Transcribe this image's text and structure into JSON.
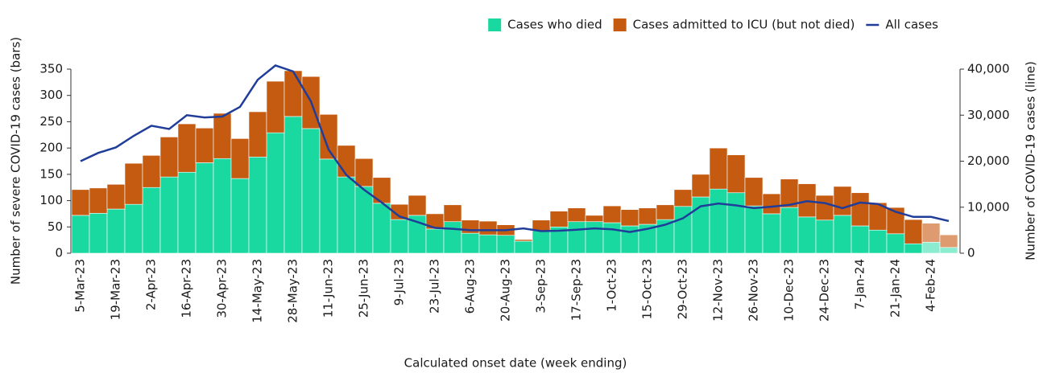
{
  "chart_data": {
    "type": "bar",
    "stacked": true,
    "x_label": "Calculated onset date (week ending)",
    "y_label": "Number of severe COVID-19 cases (bars)",
    "y2_label": "Number of COVID-19 cases (line)",
    "legend": "top-right",
    "categories": [
      "5-Mar-23",
      null,
      "19-Mar-23",
      null,
      "2-Apr-23",
      null,
      "16-Apr-23",
      null,
      "30-Apr-23",
      null,
      "14-May-23",
      null,
      "28-May-23",
      null,
      "11-Jun-23",
      null,
      "25-Jun-23",
      null,
      "9-Jul-23",
      null,
      "23-Jul-23",
      null,
      "6-Aug-23",
      null,
      "20-Aug-23",
      null,
      "3-Sep-23",
      null,
      "17-Sep-23",
      null,
      "1-Oct-23",
      null,
      "15-Oct-23",
      null,
      "29-Oct-23",
      null,
      "12-Nov-23",
      null,
      "26-Nov-23",
      null,
      "10-Dec-23",
      null,
      "24-Dec-23",
      null,
      "7-Jan-24",
      null,
      "21-Jan-24",
      null,
      "4-Feb-24",
      null
    ],
    "ylim": [
      0,
      350
    ],
    "yticks": [
      0,
      50,
      100,
      150,
      200,
      250,
      300,
      350
    ],
    "y2lim": [
      0,
      40000
    ],
    "y2ticks": [
      0,
      {
        "value": 10000,
        "label": "10,000"
      },
      {
        "value": 20000,
        "label": "20,000"
      },
      {
        "value": 30000,
        "label": "30,000"
      },
      {
        "value": 40000,
        "label": "40,000"
      }
    ],
    "series": [
      {
        "name": "Cases who died",
        "color": "#1ad9a0",
        "colors": [
          "#1ad9a0",
          "#1ad9a0",
          "#1ad9a0",
          "#1ad9a0",
          "#1ad9a0",
          "#1ad9a0",
          "#1ad9a0",
          "#1ad9a0",
          "#1ad9a0",
          "#1ad9a0",
          "#1ad9a0",
          "#1ad9a0",
          "#1ad9a0",
          "#1ad9a0",
          "#1ad9a0",
          "#1ad9a0",
          "#1ad9a0",
          "#1ad9a0",
          "#1ad9a0",
          "#1ad9a0",
          "#1ad9a0",
          "#1ad9a0",
          "#1ad9a0",
          "#1ad9a0",
          "#1ad9a0",
          "#1ad9a0",
          "#1ad9a0",
          "#1ad9a0",
          "#1ad9a0",
          "#1ad9a0",
          "#1ad9a0",
          "#1ad9a0",
          "#1ad9a0",
          "#1ad9a0",
          "#1ad9a0",
          "#1ad9a0",
          "#1ad9a0",
          "#1ad9a0",
          "#1ad9a0",
          "#1ad9a0",
          "#1ad9a0",
          "#1ad9a0",
          "#1ad9a0",
          "#1ad9a0",
          "#1ad9a0",
          "#1ad9a0",
          "#1ad9a0",
          "#1ad9a0",
          "#8cecd0",
          "#8cecd0"
        ],
        "values": [
          72,
          76,
          84,
          93,
          125,
          145,
          154,
          172,
          180,
          142,
          183,
          229,
          260,
          237,
          179,
          145,
          127,
          95,
          64,
          72,
          46,
          60,
          38,
          35,
          34,
          23,
          43,
          50,
          60,
          60,
          58,
          52,
          55,
          64,
          89,
          107,
          122,
          115,
          90,
          75,
          87,
          69,
          63,
          72,
          52,
          44,
          37,
          18,
          21,
          11
        ]
      },
      {
        "name": "Cases admitted to ICU (but not died)",
        "color": "#c55a11",
        "colors": [
          "#c55a11",
          "#c55a11",
          "#c55a11",
          "#c55a11",
          "#c55a11",
          "#c55a11",
          "#c55a11",
          "#c55a11",
          "#c55a11",
          "#c55a11",
          "#c55a11",
          "#c55a11",
          "#c55a11",
          "#c55a11",
          "#c55a11",
          "#c55a11",
          "#c55a11",
          "#c55a11",
          "#c55a11",
          "#c55a11",
          "#c55a11",
          "#c55a11",
          "#c55a11",
          "#c55a11",
          "#c55a11",
          "#c55a11",
          "#c55a11",
          "#c55a11",
          "#c55a11",
          "#c55a11",
          "#c55a11",
          "#c55a11",
          "#c55a11",
          "#c55a11",
          "#c55a11",
          "#c55a11",
          "#c55a11",
          "#c55a11",
          "#c55a11",
          "#c55a11",
          "#c55a11",
          "#c55a11",
          "#c55a11",
          "#c55a11",
          "#c55a11",
          "#c55a11",
          "#c55a11",
          "#c55a11",
          "#de9b6f",
          "#de9b6f"
        ],
        "values": [
          49,
          48,
          47,
          78,
          61,
          76,
          92,
          66,
          86,
          76,
          86,
          98,
          87,
          99,
          85,
          60,
          53,
          49,
          29,
          38,
          29,
          32,
          25,
          26,
          20,
          3,
          20,
          30,
          26,
          12,
          32,
          31,
          31,
          28,
          32,
          43,
          78,
          72,
          54,
          38,
          54,
          63,
          47,
          55,
          63,
          52,
          50,
          46,
          36,
          24
        ]
      },
      {
        "name": "All cases",
        "type": "line",
        "axis": "y2",
        "color": "#1f3d99",
        "values": [
          20000,
          21800,
          23000,
          25500,
          27700,
          27000,
          30000,
          29500,
          29700,
          31800,
          37700,
          40800,
          39500,
          33000,
          22500,
          17000,
          13800,
          11000,
          8000,
          6800,
          5500,
          5300,
          5000,
          5000,
          5000,
          5400,
          4800,
          4900,
          5100,
          5400,
          5200,
          4600,
          5300,
          6200,
          7600,
          10200,
          10800,
          10400,
          9800,
          10100,
          10500,
          11300,
          10900,
          9800,
          11000,
          10700,
          9000,
          7900,
          7900,
          7000
        ]
      }
    ]
  }
}
